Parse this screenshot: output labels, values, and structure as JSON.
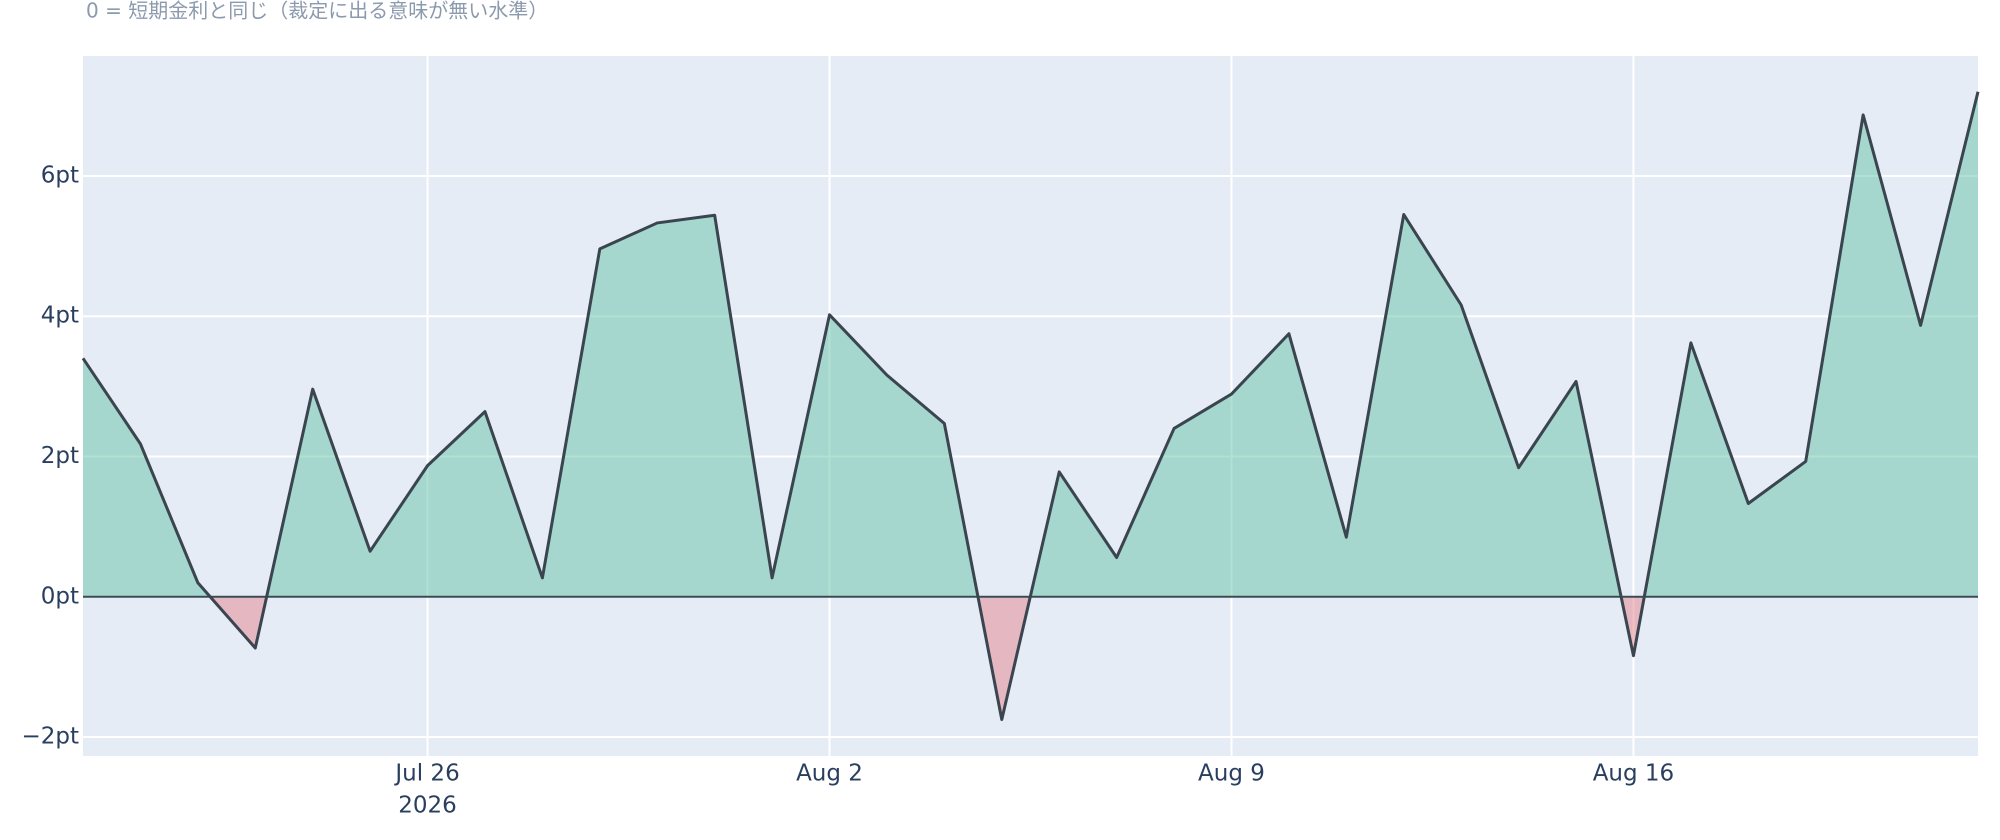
{
  "chart_data": {
    "type": "area-line",
    "subtitle": "0 = 短期金利と同じ（裁定に出る意味が無い水準）",
    "x": [
      "2026-07-20",
      "2026-07-21",
      "2026-07-22",
      "2026-07-23",
      "2026-07-24",
      "2026-07-25",
      "2026-07-26",
      "2026-07-27",
      "2026-07-28",
      "2026-07-29",
      "2026-07-30",
      "2026-07-31",
      "2026-08-01",
      "2026-08-02",
      "2026-08-03",
      "2026-08-04",
      "2026-08-05",
      "2026-08-06",
      "2026-08-07",
      "2026-08-08",
      "2026-08-09",
      "2026-08-10",
      "2026-08-11",
      "2026-08-12",
      "2026-08-13",
      "2026-08-14",
      "2026-08-15",
      "2026-08-16",
      "2026-08-17",
      "2026-08-18",
      "2026-08-19",
      "2026-08-20",
      "2026-08-21",
      "2026-08-22"
    ],
    "values": [
      3.4,
      2.18,
      0.2,
      -0.73,
      2.96,
      0.65,
      1.87,
      2.64,
      0.27,
      4.96,
      5.33,
      5.44,
      0.27,
      4.02,
      3.16,
      2.47,
      -1.75,
      1.78,
      0.56,
      2.4,
      2.89,
      3.75,
      0.85,
      5.45,
      4.16,
      1.84,
      3.07,
      -0.84,
      3.62,
      1.33,
      1.93,
      6.87,
      3.87,
      7.2
    ],
    "line_color": "#3a4550",
    "fill_positive_color": "rgba(102,194,165,0.5)",
    "fill_negative_color": "rgba(230,130,140,0.5)",
    "xlim": [
      "2026-07-20",
      "2026-08-22"
    ],
    "xticks": [
      {
        "value": "2026-07-26",
        "label": "Jul 26",
        "sublabel": "2026"
      },
      {
        "value": "2026-08-02",
        "label": "Aug 2"
      },
      {
        "value": "2026-08-09",
        "label": "Aug 9"
      },
      {
        "value": "2026-08-16",
        "label": "Aug 16"
      }
    ],
    "ylim": [
      -2.27,
      7.71
    ],
    "yticks": [
      {
        "value": -2,
        "label": "−2pt"
      },
      {
        "value": 0,
        "label": "0pt"
      },
      {
        "value": 2,
        "label": "2pt"
      },
      {
        "value": 4,
        "label": "4pt"
      },
      {
        "value": 6,
        "label": "6pt"
      }
    ],
    "grid": true,
    "zeroline": true
  }
}
